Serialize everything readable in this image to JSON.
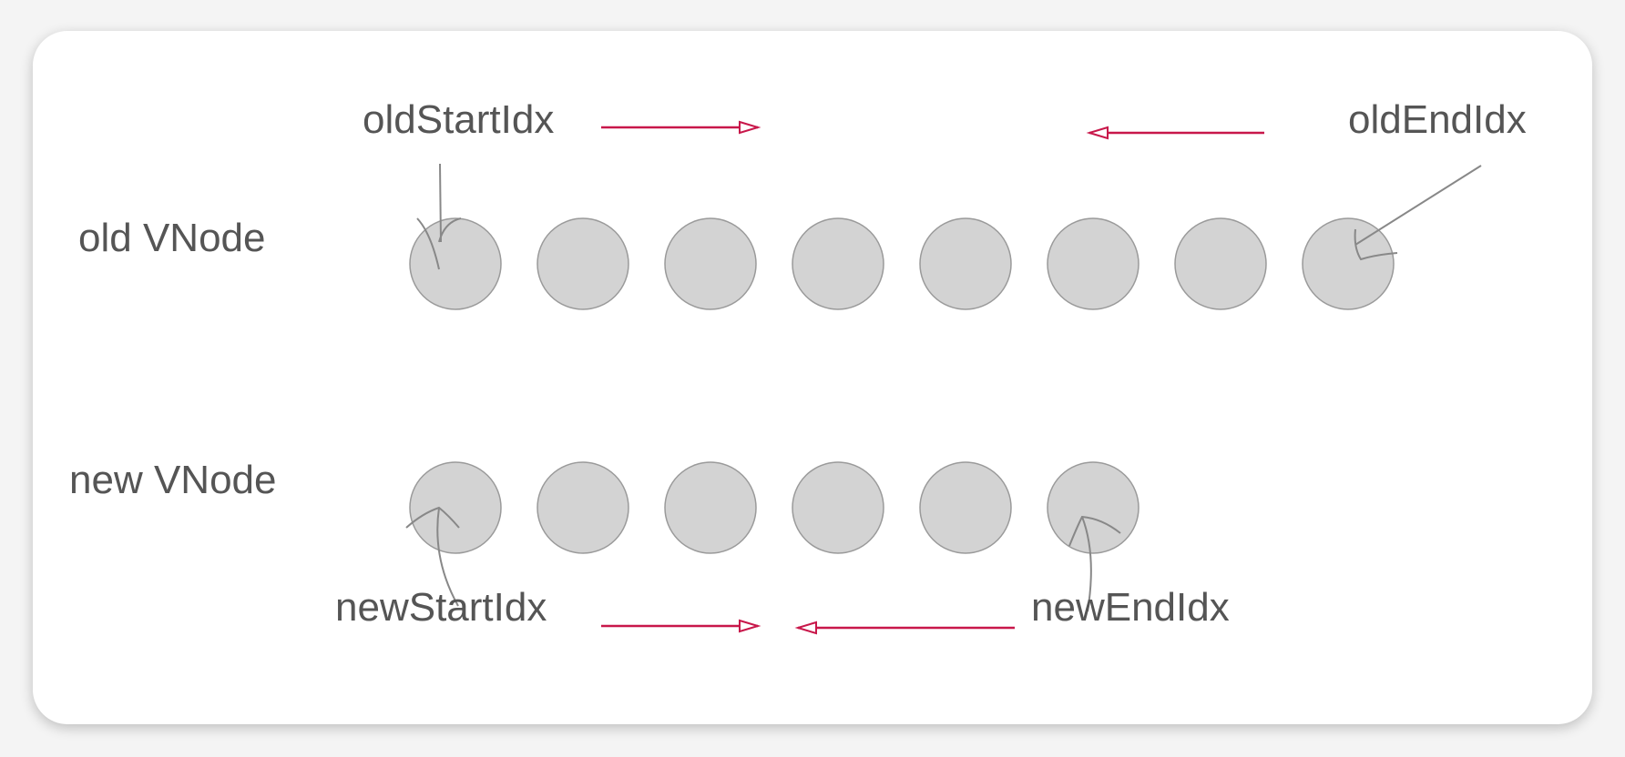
{
  "rows": {
    "old": {
      "label": "old VNode",
      "node_count": 8
    },
    "new": {
      "label": "new VNode",
      "node_count": 6
    }
  },
  "pointers": {
    "old_start": "oldStartIdx",
    "old_end": "oldEndIdx",
    "new_start": "newStartIdx",
    "new_end": "newEndIdx"
  },
  "colors": {
    "node_fill": "#d3d3d3",
    "node_stroke": "#9a9a9a",
    "arrow": "#c8174a",
    "text": "#555555"
  }
}
